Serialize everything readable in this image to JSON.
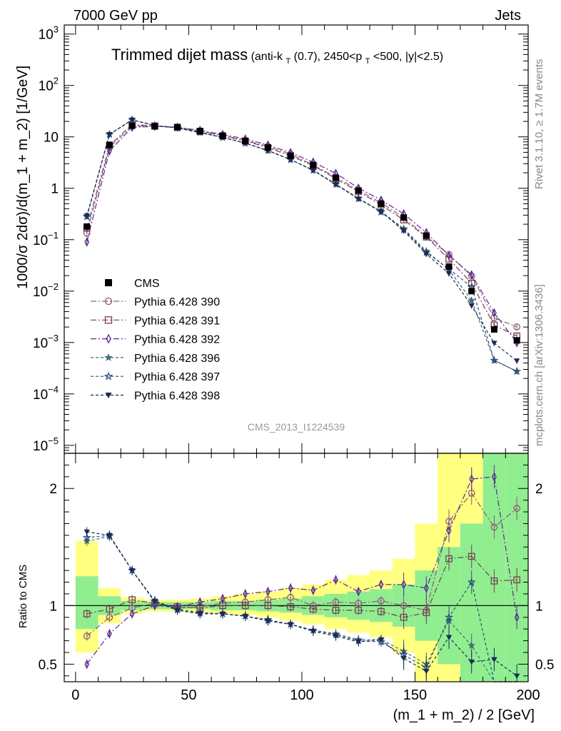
{
  "header": {
    "left": "7000 GeV pp",
    "right": "Jets"
  },
  "title": {
    "main": "Trimmed dijet mass",
    "sub_prefix": "(anti-k",
    "sub_sub1": "T",
    "sub_mid": "(0.7), 2450<p",
    "sub_sub2": "T",
    "sub_suffix": "<500, |y|<2.5)"
  },
  "side_labels": {
    "rivet": "Rivet 3.1.10, ≥ 1.7M events",
    "mcplots": "mcplots.cern.ch [arXiv:1306.3436]"
  },
  "watermark": "CMS_2013_I1224539",
  "ylabel_top": "1000/σ 2dσ)/d(m_1 + m_2) [1/GeV]",
  "ylabel_bottom": "Ratio to CMS",
  "xlabel": "(m_1 + m_2) / 2 [GeV]",
  "colors": {
    "band_inner": "#90ee90",
    "band_outer": "#ffff80"
  },
  "chart_data": {
    "type": "line",
    "x": [
      5,
      15,
      25,
      35,
      45,
      55,
      65,
      75,
      85,
      95,
      105,
      115,
      125,
      135,
      145,
      155,
      165,
      175,
      185,
      195
    ],
    "xlim": [
      -5,
      200
    ],
    "xticks": [
      "0",
      "50",
      "100",
      "150",
      "200"
    ],
    "xtick_values": [
      0,
      50,
      100,
      150,
      200
    ],
    "top_panel": {
      "yscale": "log",
      "ylim": [
        7e-06,
        1500
      ],
      "yticks": [
        {
          "value": 1e-05,
          "base": "10",
          "exp": "−5"
        },
        {
          "value": 0.0001,
          "base": "10",
          "exp": "−4"
        },
        {
          "value": 0.001,
          "base": "10",
          "exp": "−3"
        },
        {
          "value": 0.01,
          "base": "10",
          "exp": "−2"
        },
        {
          "value": 0.1,
          "base": "10",
          "exp": "−1"
        },
        {
          "value": 1,
          "base": "1",
          "exp": ""
        },
        {
          "value": 10,
          "base": "10",
          "exp": ""
        },
        {
          "value": 100,
          "base": "10",
          "exp": "2"
        },
        {
          "value": 1000,
          "base": "10",
          "exp": "3"
        }
      ]
    },
    "bottom_panel": {
      "ylim": [
        0.35,
        2.3
      ],
      "yticks": [
        "0.5",
        "1",
        "2"
      ],
      "ytick_values": [
        0.5,
        1,
        2
      ]
    },
    "cms": {
      "name": "CMS",
      "values": [
        0.18,
        7.0,
        16.5,
        16.0,
        15.5,
        13.0,
        10.5,
        8.3,
        6.2,
        4.3,
        2.85,
        1.6,
        0.9,
        0.5,
        0.27,
        0.12,
        0.03,
        0.01,
        0.0018,
        0.0011
      ],
      "band_inner": [
        [
          0.8,
          1.25
        ],
        [
          0.92,
          1.08
        ],
        [
          0.96,
          1.04
        ],
        [
          0.97,
          1.03
        ],
        [
          0.97,
          1.03
        ],
        [
          0.97,
          1.03
        ],
        [
          0.96,
          1.04
        ],
        [
          0.96,
          1.04
        ],
        [
          0.95,
          1.05
        ],
        [
          0.94,
          1.06
        ],
        [
          0.92,
          1.08
        ],
        [
          0.9,
          1.1
        ],
        [
          0.88,
          1.12
        ],
        [
          0.86,
          1.14
        ],
        [
          0.82,
          1.18
        ],
        [
          0.7,
          1.3
        ],
        [
          0.5,
          1.5
        ],
        [
          0.3,
          1.7
        ],
        [
          0.35,
          2.3
        ],
        [
          0.35,
          2.3
        ]
      ],
      "band_outer": [
        [
          0.6,
          1.55
        ],
        [
          0.85,
          1.15
        ],
        [
          0.93,
          1.07
        ],
        [
          0.95,
          1.05
        ],
        [
          0.95,
          1.05
        ],
        [
          0.94,
          1.06
        ],
        [
          0.93,
          1.08
        ],
        [
          0.92,
          1.1
        ],
        [
          0.9,
          1.12
        ],
        [
          0.87,
          1.15
        ],
        [
          0.84,
          1.18
        ],
        [
          0.8,
          1.22
        ],
        [
          0.77,
          1.26
        ],
        [
          0.73,
          1.3
        ],
        [
          0.6,
          1.4
        ],
        [
          0.35,
          1.7
        ],
        [
          0.35,
          2.3
        ],
        [
          0.35,
          2.3
        ],
        [
          0.35,
          2.3
        ],
        [
          0.35,
          2.3
        ]
      ]
    },
    "series": [
      {
        "name": "Pythia 6.428 390",
        "color": "#8b5a7a",
        "marker": "circle-open",
        "dash": "8,3,2,3",
        "ratio": [
          0.74,
          0.9,
          0.98,
          1.02,
          0.98,
          0.99,
          1.02,
          1.03,
          1.05,
          1.07,
          1.0,
          1.03,
          1.02,
          1.04,
          1.0,
          0.96,
          1.72,
          1.96,
          1.67,
          1.83
        ]
      },
      {
        "name": "Pythia 6.428 391",
        "color": "#7a3e50",
        "marker": "square-open",
        "dash": "8,3,2,3",
        "ratio": [
          0.93,
          0.97,
          1.05,
          1.02,
          0.99,
          0.98,
          1.0,
          1.0,
          1.0,
          0.99,
          0.97,
          0.96,
          0.96,
          0.95,
          0.9,
          0.94,
          1.4,
          1.42,
          1.21,
          1.22
        ]
      },
      {
        "name": "Pythia 6.428 392",
        "color": "#5a2a90",
        "marker": "diamond-open",
        "dash": "8,3,2,3",
        "ratio": [
          0.5,
          0.76,
          0.93,
          1.0,
          0.99,
          1.03,
          1.06,
          1.1,
          1.12,
          1.15,
          1.13,
          1.22,
          1.12,
          1.18,
          1.18,
          1.15,
          1.64,
          2.08,
          2.1,
          0.9
        ]
      },
      {
        "name": "Pythia 6.428 396",
        "color": "#3e6e7a",
        "marker": "star-filled",
        "dash": "4,3",
        "ratio": [
          1.55,
          1.59,
          1.3,
          1.03,
          0.96,
          0.93,
          0.93,
          0.91,
          0.87,
          0.84,
          0.79,
          0.76,
          0.71,
          0.71,
          0.61,
          0.5,
          0.87,
          0.66,
          0.25,
          0.25
        ]
      },
      {
        "name": "Pythia 6.428 397",
        "color": "#2e4a78",
        "marker": "star-open",
        "dash": "4,3",
        "ratio": [
          1.58,
          1.6,
          1.3,
          1.04,
          0.97,
          0.94,
          0.93,
          0.91,
          0.88,
          0.84,
          0.79,
          0.75,
          0.7,
          0.69,
          0.58,
          0.47,
          0.9,
          1.2,
          0.25,
          0.25
        ]
      },
      {
        "name": "Pythia 6.428 398",
        "color": "#1a2a52",
        "marker": "triangle-down-filled",
        "dash": "4,3",
        "ratio": [
          1.63,
          1.6,
          1.3,
          1.04,
          0.96,
          0.93,
          0.93,
          0.91,
          0.87,
          0.84,
          0.78,
          0.74,
          0.69,
          0.71,
          0.55,
          0.44,
          0.73,
          0.52,
          0.54,
          0.4
        ]
      }
    ]
  }
}
